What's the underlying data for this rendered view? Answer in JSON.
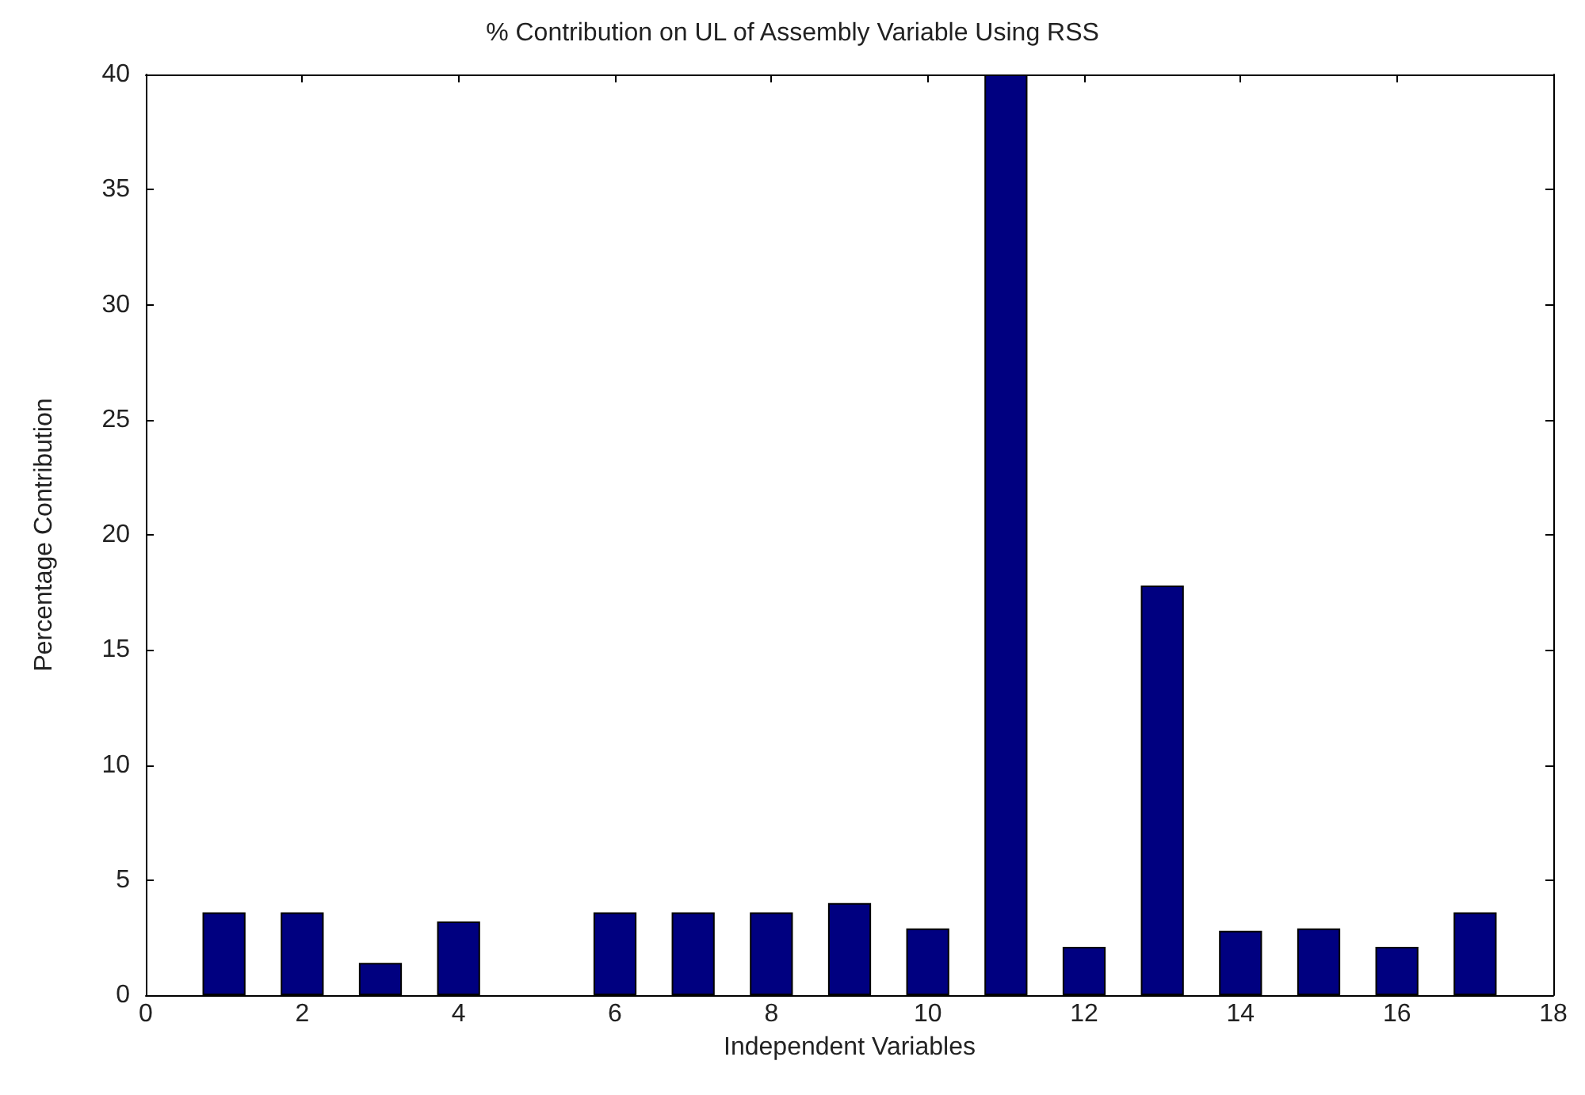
{
  "chart_data": {
    "type": "bar",
    "title": "% Contribution on UL of Assembly Variable Using RSS",
    "xlabel": "Independent Variables",
    "ylabel": "Percentage Contribution",
    "x": [
      1,
      2,
      3,
      4,
      6,
      7,
      8,
      9,
      10,
      11,
      12,
      13,
      14,
      15,
      16,
      17
    ],
    "values": [
      3.6,
      3.6,
      1.4,
      3.2,
      3.6,
      3.6,
      3.6,
      4.0,
      2.9,
      40,
      2.1,
      17.8,
      2.8,
      2.9,
      2.1,
      3.6
    ],
    "color": "#000080",
    "xlim": [
      0,
      18
    ],
    "xticks": [
      0,
      2,
      4,
      6,
      8,
      10,
      12,
      14,
      16,
      18
    ],
    "ylim": [
      0,
      40
    ],
    "yticks": [
      0,
      5,
      10,
      15,
      20,
      25,
      30,
      35,
      40
    ],
    "grid": false
  }
}
